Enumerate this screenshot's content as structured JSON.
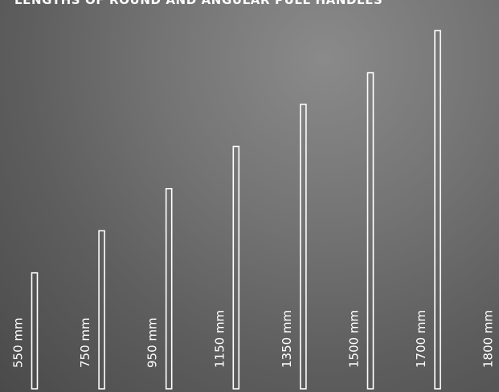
{
  "title": "LENGTHS OF ROUND AND ANGULAR PULL HANDLES",
  "handles": [
    {
      "label": "550 mm",
      "length_mm": 550
    },
    {
      "label": "750 mm",
      "length_mm": 750
    },
    {
      "label": "950 mm",
      "length_mm": 950
    },
    {
      "label": "1150 mm",
      "length_mm": 1150
    },
    {
      "label": "1350 mm",
      "length_mm": 1350
    },
    {
      "label": "1500 mm",
      "length_mm": 1500
    },
    {
      "label": "1700 mm",
      "length_mm": 1700
    },
    {
      "label": "1800 mm",
      "length_mm": 1800
    }
  ],
  "colors": {
    "stroke": "#ffffff",
    "text": "#ffffff",
    "background": "#6e6e6e"
  }
}
